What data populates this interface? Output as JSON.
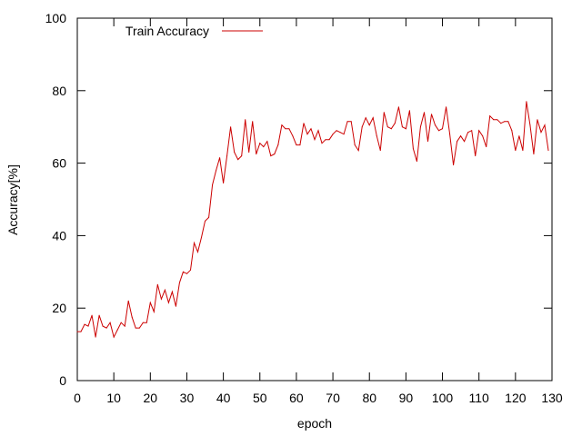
{
  "chart_data": {
    "type": "line",
    "title": "",
    "xlabel": "epoch",
    "ylabel": "Accuracy[%]",
    "xlim": [
      0,
      130
    ],
    "ylim": [
      0,
      100
    ],
    "xticks": [
      0,
      10,
      20,
      30,
      40,
      50,
      60,
      70,
      80,
      90,
      100,
      110,
      120,
      130
    ],
    "yticks": [
      0,
      20,
      40,
      60,
      80,
      100
    ],
    "grid": false,
    "legend_position": "top-left",
    "series": [
      {
        "name": "Train Accuracy",
        "color": "#cc0000",
        "x": [
          0,
          1,
          2,
          3,
          4,
          5,
          6,
          7,
          8,
          9,
          10,
          11,
          12,
          13,
          14,
          15,
          16,
          17,
          18,
          19,
          20,
          21,
          22,
          23,
          24,
          25,
          26,
          27,
          28,
          29,
          30,
          31,
          32,
          33,
          34,
          35,
          36,
          37,
          38,
          39,
          40,
          41,
          42,
          43,
          44,
          45,
          46,
          47,
          48,
          49,
          50,
          51,
          52,
          53,
          54,
          55,
          56,
          57,
          58,
          59,
          60,
          61,
          62,
          63,
          64,
          65,
          66,
          67,
          68,
          69,
          70,
          71,
          72,
          73,
          74,
          75,
          76,
          77,
          78,
          79,
          80,
          81,
          82,
          83,
          84,
          85,
          86,
          87,
          88,
          89,
          90,
          91,
          92,
          93,
          94,
          95,
          96,
          97,
          98,
          99,
          100,
          101,
          102,
          103,
          104,
          105,
          106,
          107,
          108,
          109,
          110,
          111,
          112,
          113,
          114,
          115,
          116,
          117,
          118,
          119,
          120,
          121,
          122,
          123,
          124,
          125,
          126,
          127,
          128,
          129
        ],
        "values": [
          13.5,
          13.5,
          15.5,
          15,
          18,
          12,
          18,
          15,
          14.5,
          16,
          12,
          14,
          16,
          15,
          22,
          17.5,
          14.5,
          14.5,
          16,
          16,
          21.5,
          19,
          26.5,
          22.5,
          25,
          21.5,
          24.5,
          20.5,
          27,
          30,
          29.5,
          30.5,
          38,
          35.5,
          39.5,
          44,
          45,
          54,
          58,
          61.5,
          54.5,
          62,
          70,
          63,
          61,
          62,
          72,
          63,
          71.5,
          62.5,
          65.5,
          64.5,
          66,
          62,
          62.5,
          65,
          70.5,
          69.5,
          69.5,
          67.5,
          65,
          65,
          71,
          68,
          69.5,
          66.5,
          69,
          65.5,
          66.5,
          66.5,
          68,
          69,
          68.5,
          68,
          71.5,
          71.5,
          65,
          63.5,
          70,
          72.5,
          70.5,
          72.5,
          67.5,
          63.5,
          74,
          70,
          69.5,
          71,
          75.5,
          70,
          69.5,
          74.5,
          64,
          60.5,
          70,
          74,
          66,
          73.5,
          70.5,
          69,
          69.5,
          75.5,
          68,
          59.5,
          66,
          67.5,
          66,
          68.5,
          69,
          62,
          69,
          67.5,
          64.5,
          73,
          72,
          72,
          71,
          71.5,
          71.5,
          69,
          63.5,
          67.5,
          63.5,
          77,
          70.5,
          62.5,
          72,
          68.5,
          70.5,
          63.5
        ]
      }
    ]
  }
}
